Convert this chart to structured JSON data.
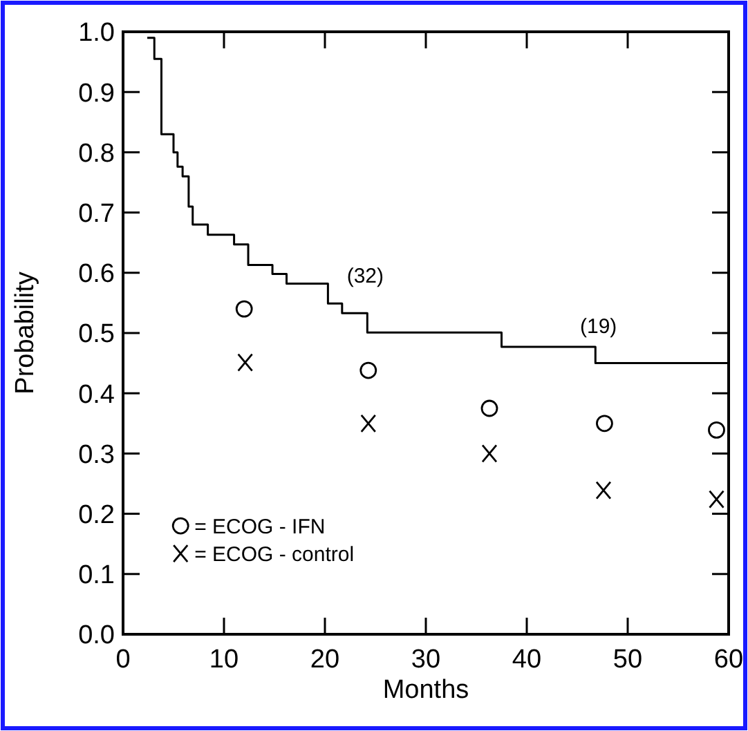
{
  "chart_data": {
    "type": "scatter",
    "xlabel": "Months",
    "ylabel": "Probability",
    "xlim": [
      0,
      60
    ],
    "ylim": [
      0,
      1
    ],
    "xticks": [
      0,
      10,
      20,
      30,
      40,
      50,
      60
    ],
    "yticks": [
      {
        "value": 0,
        "label": "0.0"
      },
      {
        "value": 0.1,
        "label": "0.1"
      },
      {
        "value": 0.2,
        "label": "0.2"
      },
      {
        "value": 0.3,
        "label": "0.3"
      },
      {
        "value": 0.4,
        "label": "0.4"
      },
      {
        "value": 0.5,
        "label": "0.5"
      },
      {
        "value": 0.6,
        "label": "0.6"
      },
      {
        "value": 0.7,
        "label": "0.7"
      },
      {
        "value": 0.8,
        "label": "0.8"
      },
      {
        "value": 0.9,
        "label": "0.9"
      },
      {
        "value": 1,
        "label": "1.0"
      }
    ],
    "grid": false,
    "legend": "bottom left",
    "series": [
      {
        "type": "step",
        "color": "#000000",
        "marker": "none",
        "x": [
          2.4,
          3.1,
          3.8,
          5.0,
          5.4,
          5.9,
          6.5,
          6.9,
          8.4,
          11.0,
          12.4,
          14.8,
          16.2,
          20.3,
          21.7,
          24.2,
          37.5,
          46.8,
          60
        ],
        "values": [
          0.99,
          0.955,
          0.83,
          0.8,
          0.776,
          0.76,
          0.71,
          0.68,
          0.663,
          0.647,
          0.613,
          0.598,
          0.582,
          0.549,
          0.533,
          0.501,
          0.477,
          0.45,
          0.45
        ]
      },
      {
        "name": "= ECOG - IFN",
        "color": "#000000",
        "marker": "circle",
        "x": [
          12,
          24.3,
          36.3,
          47.7,
          58.8
        ],
        "values": [
          0.54,
          0.438,
          0.375,
          0.35,
          0.339
        ]
      },
      {
        "name": "= ECOG - control",
        "color": "#000000",
        "marker": "cross",
        "x": [
          12.1,
          24.3,
          36.3,
          47.6,
          58.8
        ],
        "values": [
          0.451,
          0.35,
          0.3,
          0.239,
          0.224
        ]
      }
    ],
    "annotations": [
      "(32)",
      "(19)"
    ]
  }
}
